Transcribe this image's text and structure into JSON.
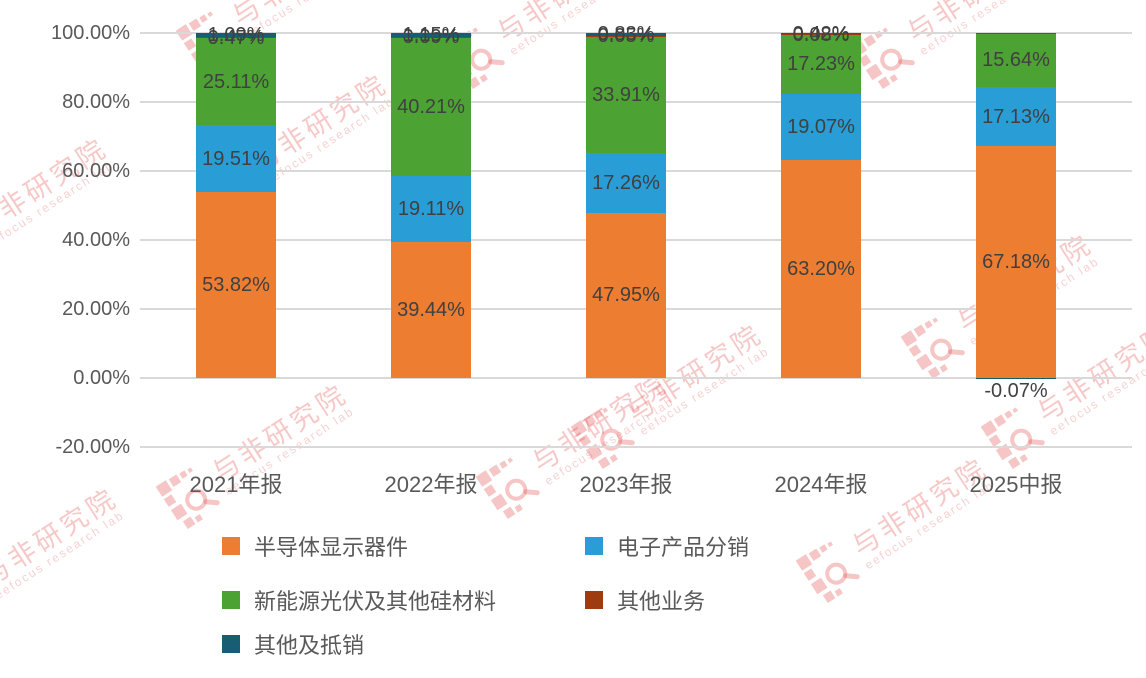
{
  "chart_data": {
    "type": "bar",
    "variant": "100%-stacked-column",
    "title": "",
    "xlabel": "",
    "ylabel": "",
    "categories": [
      "2021年报",
      "2022年报",
      "2023年报",
      "2024年报",
      "2025中报"
    ],
    "series": [
      {
        "name": "半导体显示器件",
        "color": "#ED7D31",
        "values": [
          53.82,
          39.44,
          47.95,
          63.2,
          67.18
        ],
        "labels": [
          "53.82%",
          "39.44%",
          "47.95%",
          "63.20%",
          "67.18%"
        ]
      },
      {
        "name": "电子产品分销",
        "color": "#299DD6",
        "values": [
          19.51,
          19.11,
          17.26,
          19.07,
          17.13
        ],
        "labels": [
          "19.51%",
          "19.11%",
          "17.26%",
          "19.07%",
          "17.13%"
        ]
      },
      {
        "name": "新能源光伏及其他硅材料",
        "color": "#4CA232",
        "values": [
          25.11,
          40.21,
          33.91,
          17.23,
          15.64
        ],
        "labels": [
          "25.11%",
          "40.21%",
          "33.91%",
          "17.23%",
          "15.64%"
        ]
      },
      {
        "name": "其他业务",
        "color": "#9E3B10",
        "values": [
          0.47,
          0.09,
          0.05,
          0.08,
          0.12
        ],
        "labels": [
          "0.47%",
          "0.09%",
          "0.05%",
          "0.08%",
          ""
        ]
      },
      {
        "name": "其他及抵销",
        "color": "#175E74",
        "values": [
          1.09,
          1.15,
          0.83,
          0.42,
          -0.07
        ],
        "labels": [
          "1.09%",
          "1.15%",
          "0.83%",
          "0.42%",
          "-0.07%"
        ]
      }
    ],
    "y_axis": {
      "min": -20,
      "max": 100,
      "tick_values": [
        100,
        80,
        60,
        40,
        20,
        0,
        -20
      ],
      "tick_labels": [
        "100.00%",
        "80.00%",
        "60.00%",
        "40.00%",
        "20.00%",
        "0.00%",
        "-20.00%"
      ]
    },
    "grid": true,
    "legend_position": "bottom"
  },
  "legend": {
    "items": [
      {
        "label": "半导体显示器件",
        "color": "#ED7D31"
      },
      {
        "label": "电子产品分销",
        "color": "#299DD6"
      },
      {
        "label": "新能源光伏及其他硅材料",
        "color": "#4CA232"
      },
      {
        "label": "其他业务",
        "color": "#9E3B10"
      },
      {
        "label": "其他及抵销",
        "color": "#175E74"
      }
    ]
  },
  "watermark": {
    "brand": "与非研究院",
    "sub": "eefocus research lab",
    "color": "#E24A4A"
  },
  "colors": {
    "gridline": "#D9D9D9",
    "axis_text": "#595959",
    "bar_label_text": "#404040",
    "background": "#FFFFFF"
  }
}
